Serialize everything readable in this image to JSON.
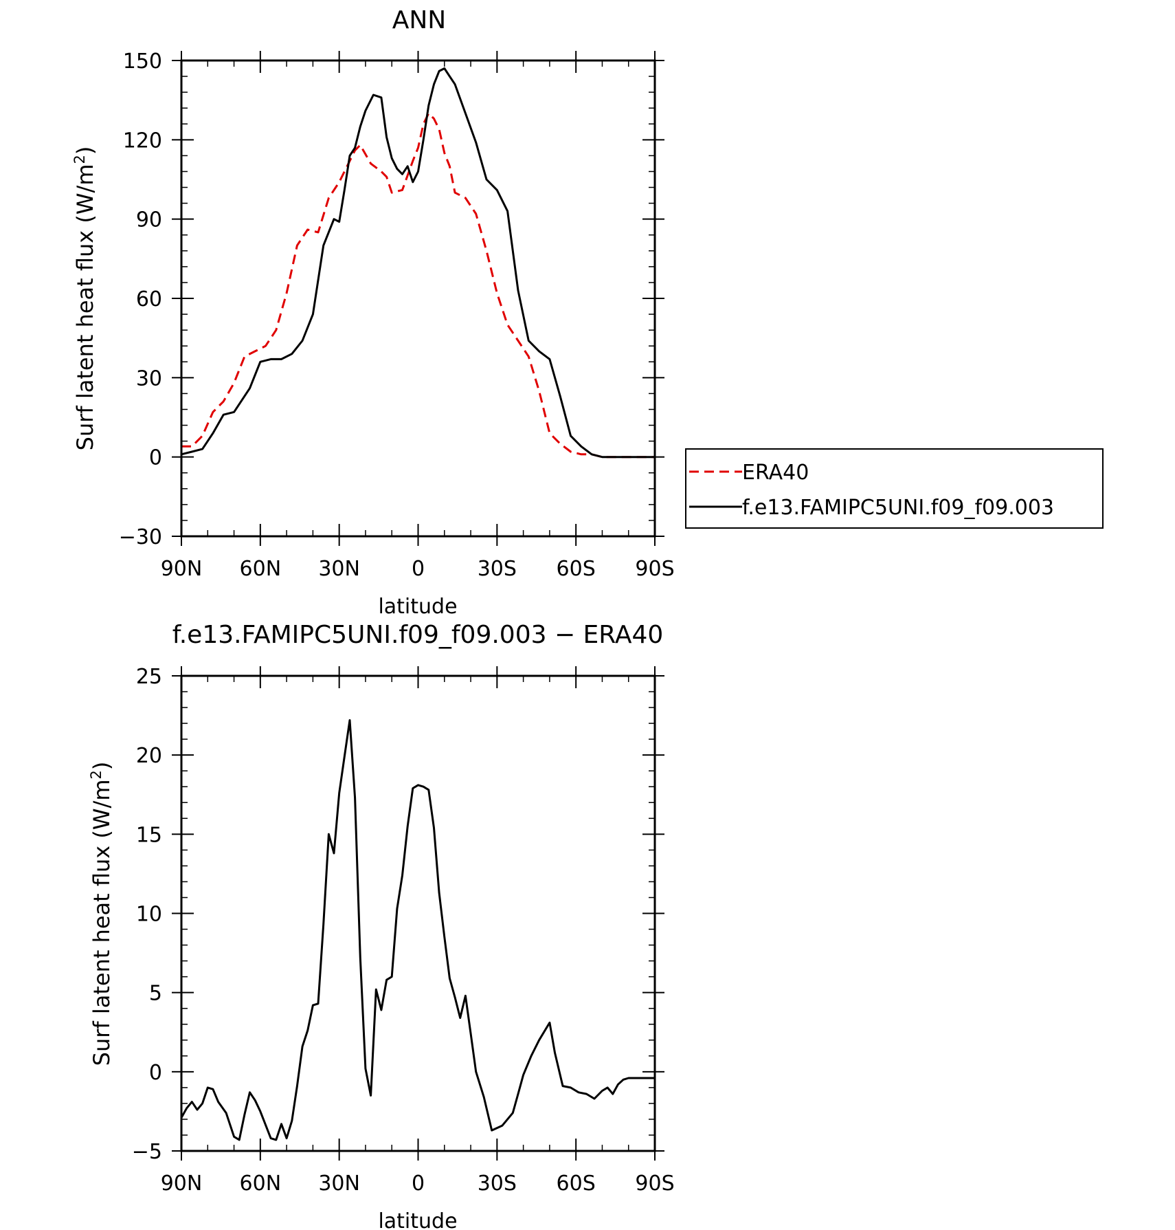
{
  "chart_data": [
    {
      "type": "line",
      "title": "ANN",
      "xlabel": "latitude",
      "ylabel": "Surf latent heat flux (W/m²)",
      "ylabel_main": "Surf latent heat flux (W/m",
      "ylabel_sup": "2",
      "ylabel_close": ")",
      "xlim": [
        90,
        -90
      ],
      "ylim": [
        -30,
        150
      ],
      "xticks": [
        90,
        60,
        30,
        0,
        -30,
        -60,
        -90
      ],
      "xticklabels": [
        "90N",
        "60N",
        "30N",
        "0",
        "30S",
        "60S",
        "90S"
      ],
      "yticks": [
        -30,
        0,
        30,
        60,
        90,
        120,
        150
      ],
      "yticklabels": [
        "−30",
        "0",
        "30",
        "60",
        "90",
        "120",
        "150"
      ],
      "legend": {
        "position": "right",
        "entries": [
          "ERA40",
          "f.e13.FAMIPC5UNI.f09_f09.003"
        ]
      },
      "series": [
        {
          "name": "ERA40",
          "color": "#e00000",
          "dash": true,
          "x": [
            90,
            86,
            82,
            78,
            74,
            70,
            66,
            62,
            58,
            54,
            50,
            46,
            42,
            38,
            34,
            30,
            28,
            26,
            24,
            22,
            18,
            14,
            12,
            10,
            6,
            2,
            0,
            -2,
            -4,
            -6,
            -8,
            -10,
            -12,
            -14,
            -18,
            -22,
            -26,
            -30,
            -34,
            -38,
            -42,
            -46,
            -50,
            -54,
            -58,
            -62,
            -66,
            -70,
            -74,
            -78,
            -82,
            -86,
            -90
          ],
          "y": [
            4,
            4,
            8,
            17,
            21,
            28,
            38,
            40,
            42,
            48,
            62,
            80,
            86,
            85,
            98,
            104,
            108,
            112,
            116,
            118,
            111,
            108,
            106,
            100,
            101,
            112,
            117,
            126,
            130,
            128,
            124,
            115,
            110,
            100,
            98,
            92,
            78,
            62,
            50,
            44,
            38,
            25,
            9,
            5,
            2,
            1,
            1,
            0,
            0,
            0,
            0,
            0,
            0
          ]
        },
        {
          "name": "f.e13.FAMIPC5UNI.f09_f09.003",
          "color": "#000000",
          "dash": false,
          "x": [
            90,
            86,
            82,
            78,
            74,
            70,
            68,
            64,
            60,
            56,
            52,
            48,
            44,
            40,
            36,
            32,
            30,
            28,
            26,
            24,
            22,
            20,
            17,
            14,
            12,
            10,
            8,
            6,
            4,
            2,
            0,
            -2,
            -4,
            -6,
            -8,
            -10,
            -12,
            -14,
            -18,
            -22,
            -26,
            -30,
            -34,
            -38,
            -42,
            -46,
            -50,
            -54,
            -58,
            -62,
            -66,
            -70,
            -74,
            -78,
            -82,
            -86,
            -90
          ],
          "y": [
            1,
            2,
            3,
            9,
            16,
            17,
            20,
            26,
            36,
            37,
            37,
            39,
            44,
            54,
            80,
            90,
            89,
            101,
            114,
            117,
            125,
            131,
            137,
            136,
            121,
            113,
            109,
            107,
            110,
            104,
            108,
            120,
            133,
            141,
            146,
            147,
            144,
            141,
            130,
            119,
            105,
            101,
            93,
            63,
            44,
            40,
            37,
            23,
            8,
            4,
            1,
            0,
            0,
            0,
            0,
            0,
            0
          ]
        }
      ]
    },
    {
      "type": "line",
      "title": "f.e13.FAMIPC5UNI.f09_f09.003 − ERA40",
      "xlabel": "latitude",
      "ylabel": "Surf latent heat flux (W/m²)",
      "ylabel_main": "Surf latent heat flux (W/m",
      "ylabel_sup": "2",
      "ylabel_close": ")",
      "xlim": [
        90,
        -90
      ],
      "ylim": [
        -5,
        25
      ],
      "xticks": [
        90,
        60,
        30,
        0,
        -30,
        -60,
        -90
      ],
      "xticklabels": [
        "90N",
        "60N",
        "30N",
        "0",
        "30S",
        "60S",
        "90S"
      ],
      "yticks": [
        -5,
        0,
        5,
        10,
        15,
        20,
        25
      ],
      "yticklabels": [
        "−5",
        "0",
        "5",
        "10",
        "15",
        "20",
        "25"
      ],
      "series": [
        {
          "color": "#000000",
          "dash": false,
          "x": [
            90,
            88,
            86,
            84,
            82,
            80,
            78,
            76,
            73,
            70,
            68,
            66,
            64,
            62,
            60,
            56,
            54,
            52,
            50,
            48,
            46,
            44,
            42,
            40,
            38,
            36,
            34,
            32,
            30,
            28,
            26,
            24,
            22,
            20,
            18,
            16,
            14,
            12,
            10,
            8,
            6,
            4,
            2,
            0,
            -2,
            -4,
            -6,
            -8,
            -10,
            -12,
            -14,
            -16,
            -18,
            -20,
            -22,
            -25,
            -28,
            -32,
            -36,
            -38,
            -40,
            -43,
            -46,
            -50,
            -52,
            -55,
            -58,
            -61,
            -64,
            -67,
            -70,
            -72,
            -74,
            -76,
            -78,
            -80,
            -82,
            -84,
            -86,
            -88,
            -90
          ],
          "y": [
            -2.9,
            -2.3,
            -1.9,
            -2.4,
            -2.0,
            -1.0,
            -1.1,
            -1.9,
            -2.6,
            -4.1,
            -4.3,
            -2.7,
            -1.3,
            -1.8,
            -2.5,
            -4.2,
            -4.3,
            -3.3,
            -4.2,
            -3.1,
            -0.9,
            1.6,
            2.6,
            4.2,
            4.3,
            9.3,
            15.0,
            13.8,
            17.6,
            19.9,
            22.2,
            17.3,
            7.2,
            0.2,
            -1.5,
            5.2,
            3.9,
            5.8,
            6.0,
            10.3,
            12.4,
            15.5,
            17.9,
            18.1,
            18.0,
            17.8,
            15.4,
            11.3,
            8.5,
            5.9,
            4.7,
            3.4,
            4.8,
            2.4,
            0.0,
            -1.6,
            -3.7,
            -3.4,
            -2.6,
            -1.4,
            -0.2,
            1.0,
            2.0,
            3.1,
            1.2,
            -0.9,
            -1.0,
            -1.3,
            -1.4,
            -1.7,
            -1.2,
            -1.0,
            -1.4,
            -0.8,
            -0.5,
            -0.4,
            -0.4,
            -0.4,
            -0.4,
            -0.4,
            -0.4
          ]
        }
      ]
    }
  ]
}
